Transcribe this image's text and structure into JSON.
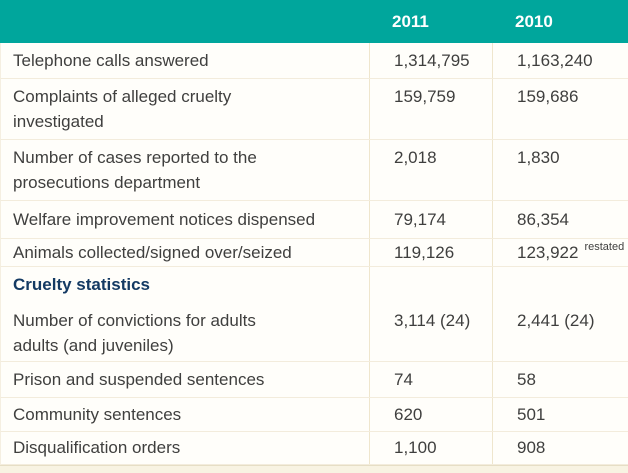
{
  "colors": {
    "accent_teal": "#00a69c",
    "section_heading_navy": "#143a63",
    "text": "#3f3f3e",
    "divider": "#f3ecdc"
  },
  "table": {
    "header": {
      "label": "",
      "col2011": "2011",
      "col2010": "2010"
    },
    "rows": [
      {
        "label": "Telephone calls answered",
        "y2011": "1,314,795",
        "y2010": "1,163,240"
      },
      {
        "label": "Complaints of alleged cruelty\ninvestigated",
        "y2011": "159,759",
        "y2010": "159,686"
      },
      {
        "label": "Number of cases reported to the\nprosecutions department",
        "y2011": "2,018",
        "y2010": "1,830"
      },
      {
        "label": "Welfare improvement notices dispensed",
        "y2011": "79,174",
        "y2010": "86,354"
      },
      {
        "label": "Animals collected/signed over/seized",
        "y2011": "119,126",
        "y2010": "123,922",
        "note": "restated"
      },
      {
        "label": "Number of convictions for adults\nadults (and juveniles)",
        "y2011": "3,114 (24)",
        "y2010": "2,441 (24)"
      },
      {
        "label": "Prison and suspended sentences",
        "y2011": "74",
        "y2010": "58"
      },
      {
        "label": "Community sentences",
        "y2011": "620",
        "y2010": "501"
      },
      {
        "label": "Disqualification orders",
        "y2011": "1,100",
        "y2010": "908"
      }
    ],
    "section_heading": "Cruelty statistics"
  }
}
